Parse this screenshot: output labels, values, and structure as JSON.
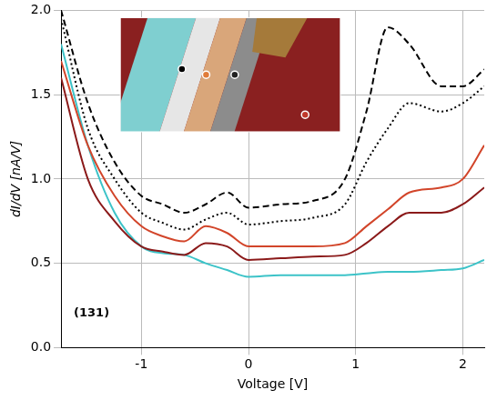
{
  "chart_data": {
    "type": "line",
    "x_label": "Voltage [V]",
    "y_label": "dI/dV [nA/V]",
    "annotation": "(131)",
    "x": [
      -1.75,
      -1.5,
      -1.25,
      -1,
      -0.8,
      -0.6,
      -0.4,
      -0.2,
      0,
      0.3,
      0.6,
      0.9,
      1.1,
      1.3,
      1.5,
      1.8,
      2.0,
      2.2
    ],
    "series": [
      {
        "color": "#000000",
        "line_style": "dashed",
        "values": [
          2.0,
          1.45,
          1.1,
          0.9,
          0.85,
          0.8,
          0.85,
          0.92,
          0.83,
          0.85,
          0.87,
          1.0,
          1.4,
          1.9,
          1.8,
          1.55,
          1.55,
          1.65
        ]
      },
      {
        "color": "#000000",
        "line_style": "dotted",
        "values": [
          1.95,
          1.3,
          1.0,
          0.8,
          0.74,
          0.7,
          0.76,
          0.8,
          0.73,
          0.75,
          0.77,
          0.85,
          1.1,
          1.3,
          1.45,
          1.4,
          1.45,
          1.55
        ]
      },
      {
        "color": "#d2452a",
        "line_style": "solid",
        "values": [
          1.7,
          1.2,
          0.9,
          0.72,
          0.66,
          0.63,
          0.72,
          0.68,
          0.6,
          0.6,
          0.6,
          0.62,
          0.72,
          0.82,
          0.92,
          0.95,
          1.0,
          1.2
        ]
      },
      {
        "color": "#8b1a1a",
        "line_style": "solid",
        "values": [
          1.6,
          1.0,
          0.75,
          0.6,
          0.57,
          0.55,
          0.62,
          0.6,
          0.52,
          0.53,
          0.54,
          0.55,
          0.62,
          0.72,
          0.8,
          0.8,
          0.85,
          0.95
        ]
      },
      {
        "color": "#3cc3c8",
        "line_style": "solid",
        "values": [
          1.8,
          1.2,
          0.8,
          0.6,
          0.56,
          0.55,
          0.5,
          0.46,
          0.42,
          0.43,
          0.43,
          0.43,
          0.44,
          0.45,
          0.45,
          0.46,
          0.47,
          0.52
        ]
      }
    ],
    "xlim": [
      -1.75,
      2.2
    ],
    "xticks": [
      -1,
      0,
      1,
      2
    ],
    "ylim": [
      0,
      2.0
    ],
    "yticks": [
      {
        "value": 0,
        "label": "0.0"
      },
      {
        "value": 0.5,
        "label": "0.5"
      },
      {
        "value": 1.0,
        "label": "1.0"
      },
      {
        "value": 1.5,
        "label": "1.5"
      },
      {
        "value": 2.0,
        "label": "2.0"
      }
    ],
    "grid": true
  }
}
